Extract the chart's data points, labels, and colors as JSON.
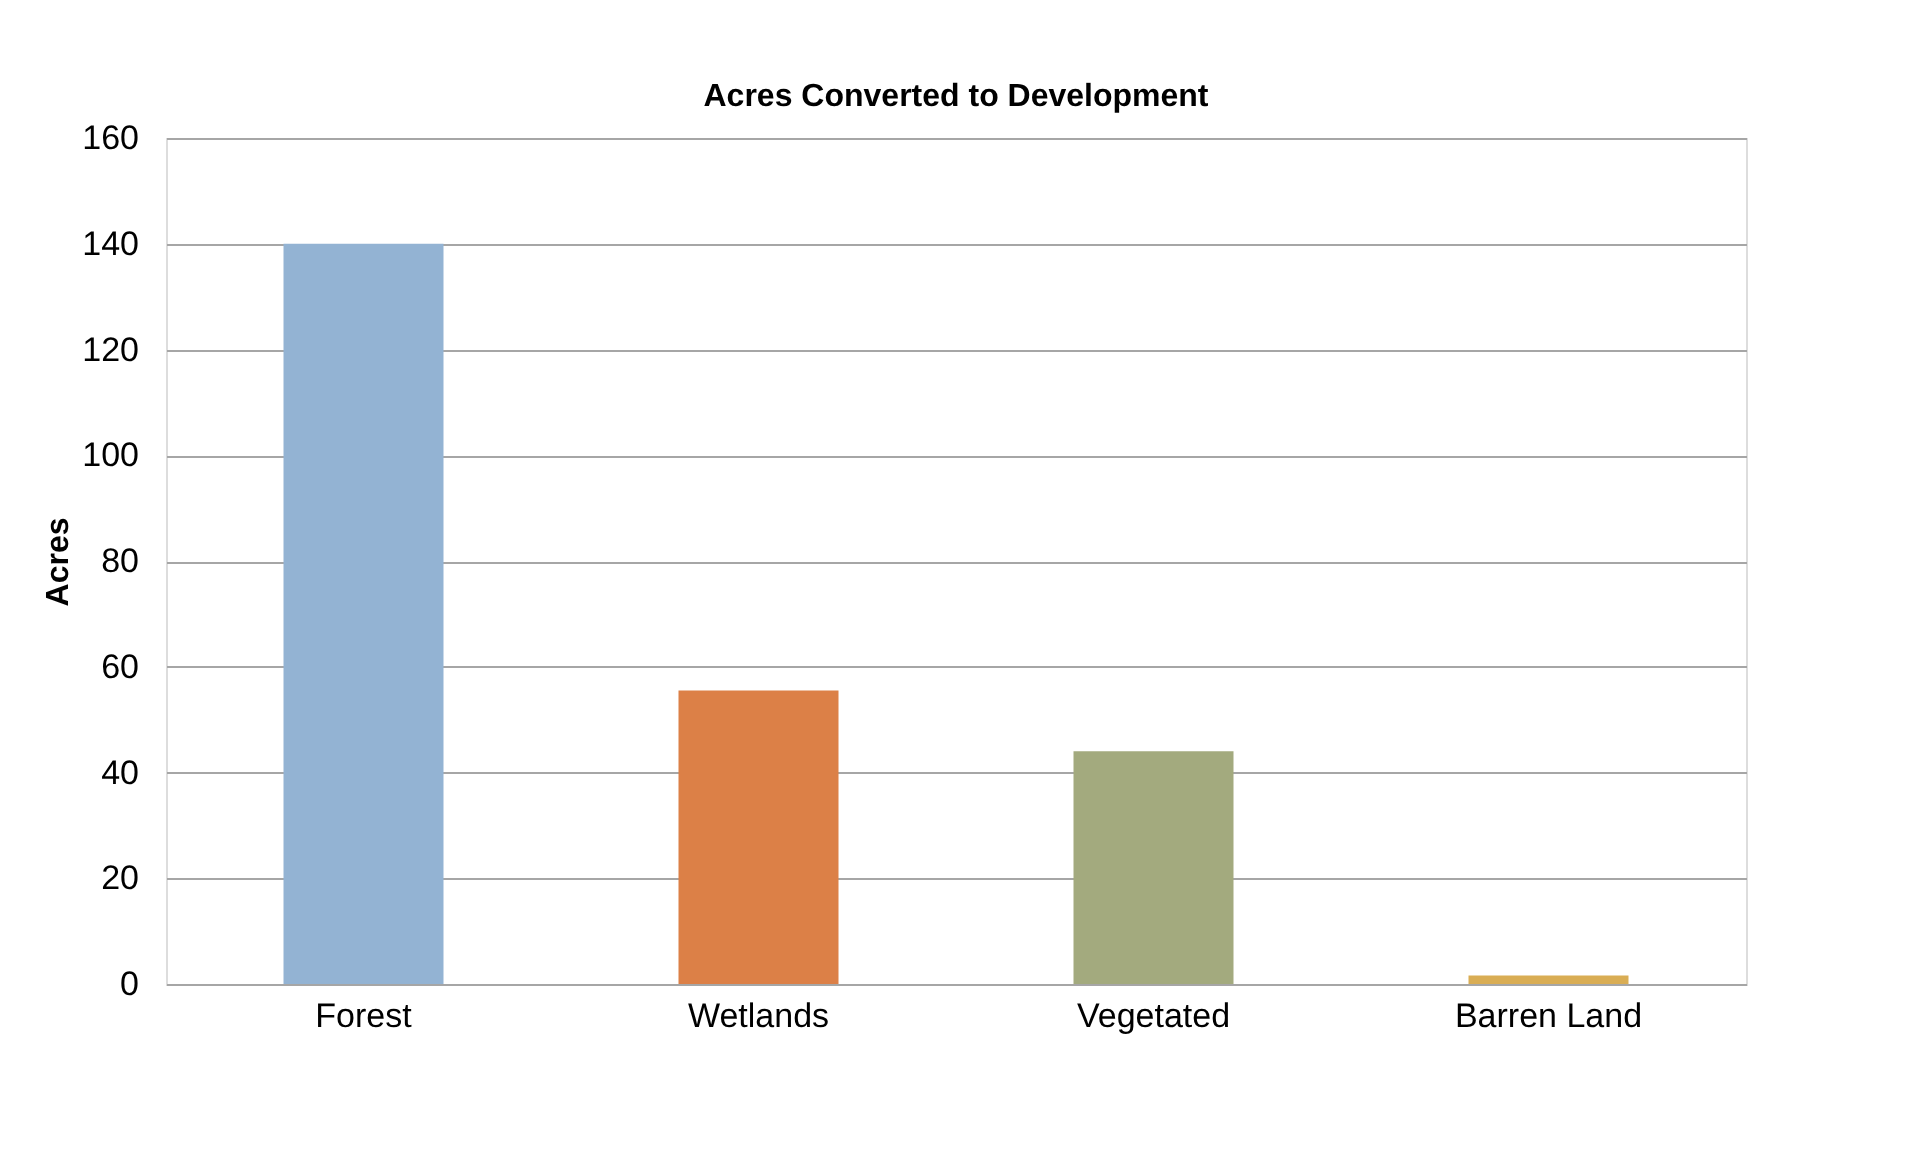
{
  "chart_data": {
    "type": "bar",
    "title": "Acres Converted to Development",
    "ylabel": "Acres",
    "categories": [
      "Forest",
      "Wetlands",
      "Vegetated",
      "Barren Land"
    ],
    "values": [
      140,
      55.5,
      44,
      1.6
    ],
    "colors": [
      "#93b3d3",
      "#dc8047",
      "#a3aa7e",
      "#d9ad54"
    ],
    "ylim": [
      0,
      160
    ],
    "yticks": [
      0,
      20,
      40,
      60,
      80,
      100,
      120,
      140,
      160
    ],
    "grid": "y"
  }
}
